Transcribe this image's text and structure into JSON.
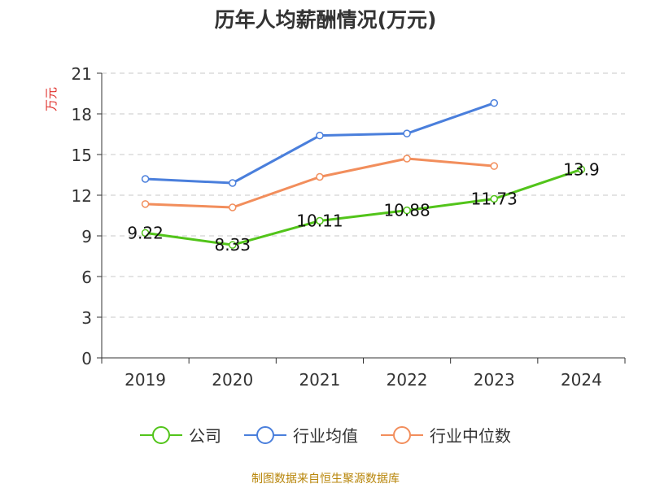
{
  "title": "历年人均薪酬情况(万元)",
  "source": "制图数据来自恒生聚源数据库",
  "chart_data": {
    "type": "line",
    "title": "历年人均薪酬情况(万元)",
    "ylabel": "万元",
    "xlabel": "",
    "categories": [
      "2019",
      "2020",
      "2021",
      "2022",
      "2023",
      "2024"
    ],
    "ylim": [
      0,
      21
    ],
    "yticks": [
      0,
      3,
      6,
      9,
      12,
      15,
      18,
      21
    ],
    "grid": true,
    "legend_position": "bottom",
    "series": [
      {
        "name": "公司",
        "color": "#52c41a",
        "values": [
          9.22,
          8.33,
          10.11,
          10.88,
          11.73,
          13.9
        ],
        "labels": [
          "9.22",
          "8.33",
          "10.11",
          "10.88",
          "11.73",
          "13.9"
        ]
      },
      {
        "name": "行业均值",
        "color": "#4a7fdc",
        "values": [
          13.2,
          12.9,
          16.4,
          16.55,
          18.8,
          null
        ]
      },
      {
        "name": "行业中位数",
        "color": "#f28e5c",
        "values": [
          11.35,
          11.1,
          13.35,
          14.7,
          14.15,
          null
        ]
      }
    ]
  }
}
